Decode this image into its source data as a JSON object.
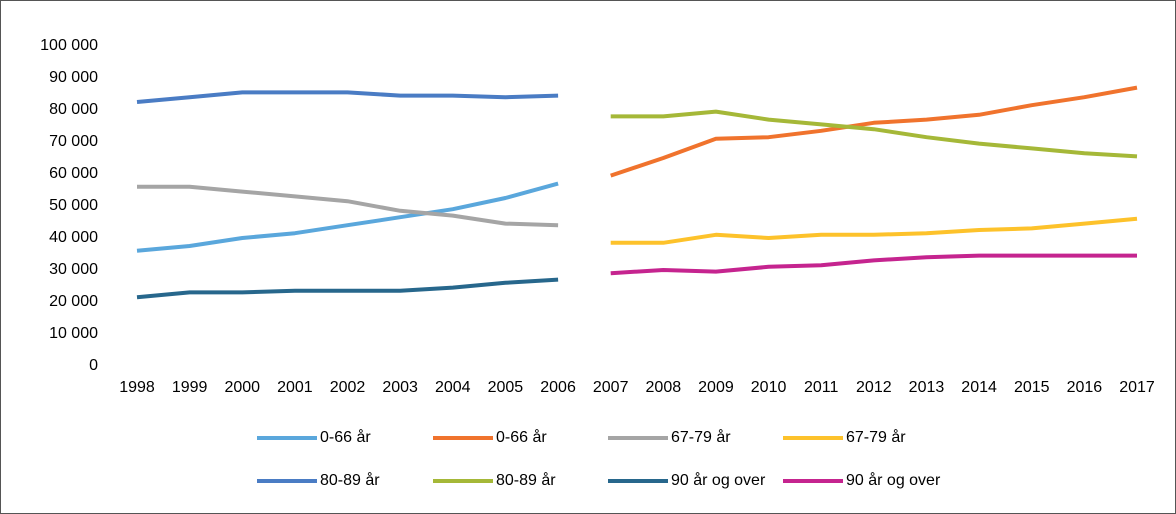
{
  "chart_data": {
    "type": "line",
    "categories": [
      "1998",
      "1999",
      "2000",
      "2001",
      "2002",
      "2003",
      "2004",
      "2005",
      "2006",
      "2007",
      "2008",
      "2009",
      "2010",
      "2011",
      "2012",
      "2013",
      "2014",
      "2015",
      "2016",
      "2017"
    ],
    "series": [
      {
        "name": "0-66 år",
        "color": "#5aa7dc",
        "values": [
          36000,
          37500,
          40000,
          41500,
          44000,
          46500,
          49000,
          52500,
          57000,
          null,
          null,
          null,
          null,
          null,
          null,
          null,
          null,
          null,
          null,
          null
        ]
      },
      {
        "name": "0-66 år",
        "color": "#f0732d",
        "values": [
          null,
          null,
          null,
          null,
          null,
          null,
          null,
          null,
          null,
          59500,
          65000,
          71000,
          71500,
          73500,
          76000,
          77000,
          78500,
          81500,
          84000,
          87000
        ]
      },
      {
        "name": "67-79 år",
        "color": "#a5a5a5",
        "values": [
          56000,
          56000,
          54500,
          53000,
          51500,
          48500,
          47000,
          44500,
          44000,
          null,
          null,
          null,
          null,
          null,
          null,
          null,
          null,
          null,
          null,
          null
        ]
      },
      {
        "name": "67-79 år",
        "color": "#fdc22b",
        "values": [
          null,
          null,
          null,
          null,
          null,
          null,
          null,
          null,
          null,
          38500,
          38500,
          41000,
          40000,
          41000,
          41000,
          41500,
          42500,
          43000,
          44500,
          46000
        ]
      },
      {
        "name": "80-89 år",
        "color": "#4a7cc4",
        "values": [
          82500,
          84000,
          85500,
          85500,
          85500,
          84500,
          84500,
          84000,
          84500,
          null,
          null,
          null,
          null,
          null,
          null,
          null,
          null,
          null,
          null,
          null
        ]
      },
      {
        "name": "80-89 år",
        "color": "#a5b838",
        "values": [
          null,
          null,
          null,
          null,
          null,
          null,
          null,
          null,
          null,
          78000,
          78000,
          79500,
          77000,
          75500,
          74000,
          71500,
          69500,
          68000,
          66500,
          65500
        ]
      },
      {
        "name": "90 år og over",
        "color": "#27678c",
        "values": [
          21500,
          23000,
          23000,
          23500,
          23500,
          23500,
          24500,
          26000,
          27000,
          null,
          null,
          null,
          null,
          null,
          null,
          null,
          null,
          null,
          null,
          null
        ]
      },
      {
        "name": "90 år og over",
        "color": "#c5248f",
        "values": [
          null,
          null,
          null,
          null,
          null,
          null,
          null,
          null,
          null,
          29000,
          30000,
          29500,
          31000,
          31500,
          33000,
          34000,
          34500,
          34500,
          34500,
          34500
        ]
      }
    ],
    "ylim": [
      0,
      100000
    ],
    "yticks": [
      0,
      {
        "value": 10000,
        "label": "10 000"
      },
      {
        "value": 20000,
        "label": "20 000"
      },
      {
        "value": 30000,
        "label": "30 000"
      },
      {
        "value": 40000,
        "label": "40 000"
      },
      {
        "value": 50000,
        "label": "50 000"
      },
      {
        "value": 60000,
        "label": "60 000"
      },
      {
        "value": 70000,
        "label": "70 000"
      },
      {
        "value": 80000,
        "label": "80 000"
      },
      {
        "value": 90000,
        "label": "90 000"
      },
      {
        "value": 100000,
        "label": "100 000"
      }
    ]
  }
}
